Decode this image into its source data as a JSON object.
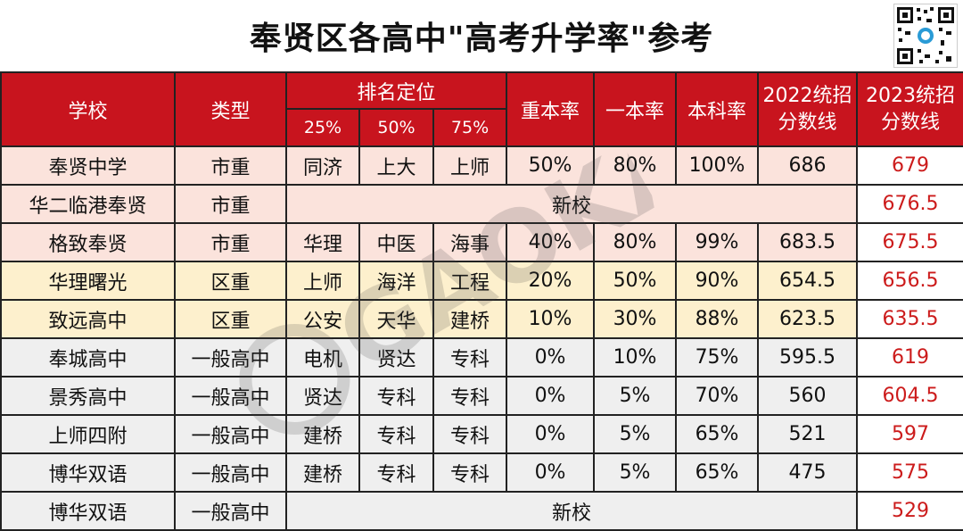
{
  "title": "奉贤区各高中\"高考升学率\"参考",
  "header": {
    "school": "学校",
    "type": "类型",
    "ranking": "排名定位",
    "p25": "25%",
    "p50": "50%",
    "p75": "75%",
    "key_rate": "重本率",
    "tier1_rate": "一本率",
    "bachelor_rate": "本科率",
    "score2022_l1": "2022统招",
    "score2022_l2": "分数线",
    "score2023_l1": "2023统招",
    "score2023_l2": "分数线"
  },
  "rows": [
    {
      "school": "奉贤中学",
      "type": "市重",
      "r25": "同济",
      "r50": "上大",
      "r75": "上师",
      "key": "50%",
      "tier1": "80%",
      "bachelor": "100%",
      "s2022": "686",
      "s2023": "679"
    },
    {
      "school": "华二临港奉贤",
      "type": "市重",
      "new": "新校",
      "s2023": "676.5"
    },
    {
      "school": "格致奉贤",
      "type": "市重",
      "r25": "华理",
      "r50": "中医",
      "r75": "海事",
      "key": "40%",
      "tier1": "80%",
      "bachelor": "99%",
      "s2022": "683.5",
      "s2023": "675.5"
    },
    {
      "school": "华理曙光",
      "type": "区重",
      "r25": "上师",
      "r50": "海洋",
      "r75": "工程",
      "key": "20%",
      "tier1": "50%",
      "bachelor": "90%",
      "s2022": "654.5",
      "s2023": "656.5"
    },
    {
      "school": "致远高中",
      "type": "区重",
      "r25": "公安",
      "r50": "天华",
      "r75": "建桥",
      "key": "10%",
      "tier1": "30%",
      "bachelor": "88%",
      "s2022": "623.5",
      "s2023": "635.5"
    },
    {
      "school": "奉城高中",
      "type": "一般高中",
      "r25": "电机",
      "r50": "贤达",
      "r75": "专科",
      "key": "0%",
      "tier1": "10%",
      "bachelor": "75%",
      "s2022": "595.5",
      "s2023": "619"
    },
    {
      "school": "景秀高中",
      "type": "一般高中",
      "r25": "贤达",
      "r50": "专科",
      "r75": "专科",
      "key": "0%",
      "tier1": "5%",
      "bachelor": "70%",
      "s2022": "560",
      "s2023": "604.5"
    },
    {
      "school": "上师四附",
      "type": "一般高中",
      "r25": "建桥",
      "r50": "专科",
      "r75": "专科",
      "key": "0%",
      "tier1": "5%",
      "bachelor": "65%",
      "s2022": "521",
      "s2023": "597"
    },
    {
      "school": "博华双语",
      "type": "一般高中",
      "r25": "建桥",
      "r50": "专科",
      "r75": "专科",
      "key": "0%",
      "tier1": "5%",
      "bachelor": "65%",
      "s2022": "475",
      "s2023": "575"
    },
    {
      "school": "博华双语",
      "type": "一般高中",
      "new": "新校",
      "s2023": "529"
    }
  ],
  "watermark": "GAOKAO 桃园在线",
  "colors": {
    "header_bg": "#c8141e",
    "row_pink": "#fbe3dc",
    "row_yellow": "#fdf0cd",
    "row_gray": "#efefef",
    "score_red": "#cc1b1b"
  }
}
